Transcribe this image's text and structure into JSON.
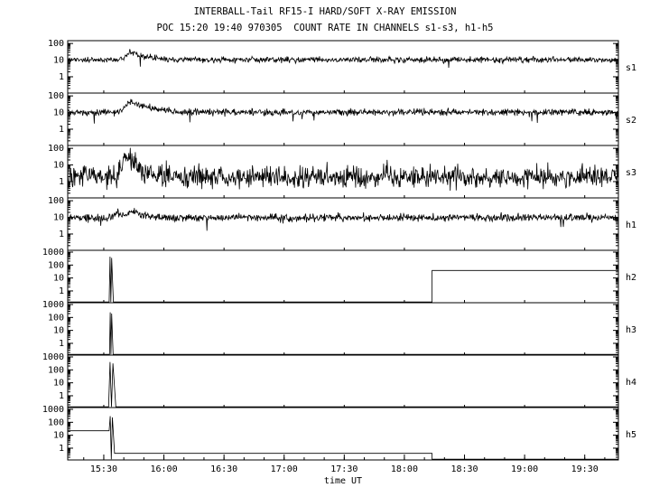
{
  "header": {
    "title": "INTERBALL-Tail RF15-I HARD/SOFT X-RAY EMISSION",
    "subtitle": "POC 15:20 19:40 970305  COUNT RATE IN CHANNELS s1-s3, h1-h5"
  },
  "colors": {
    "foreground": "#000000",
    "background": "#ffffff"
  },
  "chart_data": {
    "type": "line",
    "title": "INTERBALL-Tail RF15-I HARD/SOFT X-RAY EMISSION",
    "subtitle": "POC 15:20 19:40 970305  COUNT RATE IN CHANNELS s1-s3, h1-h5",
    "xlabel": "time UT",
    "yscale": "log",
    "grid": false,
    "x_range_hours": [
      15.2,
      19.78
    ],
    "x_ticks": [
      "15:30",
      "16:00",
      "16:30",
      "17:00",
      "17:30",
      "18:00",
      "18:30",
      "19:00",
      "19:30"
    ],
    "x_tick_hours": [
      15.5,
      16.0,
      16.5,
      17.0,
      17.5,
      18.0,
      18.5,
      19.0,
      19.5
    ],
    "panels": [
      {
        "label": "s1",
        "type": "line",
        "yticks": [
          1,
          10,
          100
        ],
        "ylim": [
          0.105,
          148
        ],
        "signal": {
          "kind": "noisy",
          "baseline": 10.5,
          "noise_dex": 0.085,
          "dropout_prob": 0.004,
          "dropout_dex": 0.6,
          "bumps": [
            {
              "t_rise_start": 15.62,
              "t_peak": 15.72,
              "peak": 24,
              "decay_h": 0.09
            }
          ]
        }
      },
      {
        "label": "s2",
        "type": "line",
        "yticks": [
          1,
          10,
          100
        ],
        "ylim": [
          0.105,
          148
        ],
        "signal": {
          "kind": "noisy",
          "baseline": 10.5,
          "noise_dex": 0.1,
          "dropout_prob": 0.01,
          "dropout_dex": 0.9,
          "bumps": [
            {
              "t_rise_start": 15.62,
              "t_peak": 15.73,
              "peak": 38,
              "decay_h": 0.11
            }
          ]
        }
      },
      {
        "label": "s3",
        "type": "line",
        "yticks": [
          1,
          10,
          100
        ],
        "ylim": [
          0.105,
          148
        ],
        "signal": {
          "kind": "noisy",
          "baseline": 1.9,
          "noise_dex": 0.32,
          "dropout_prob": 0.006,
          "dropout_dex": 0.5,
          "bumps": [
            {
              "t_rise_start": 15.6,
              "t_peak": 15.68,
              "peak": 30,
              "decay_h": 0.055
            }
          ]
        }
      },
      {
        "label": "h1",
        "type": "line",
        "yticks": [
          1,
          10,
          100
        ],
        "ylim": [
          0.105,
          148
        ],
        "signal": {
          "kind": "noisy",
          "baseline": 9.5,
          "noise_dex": 0.11,
          "dropout_prob": 0.006,
          "dropout_dex": 0.7,
          "bumps": [
            {
              "t_rise_start": 15.55,
              "t_peak": 15.61,
              "peak": 11,
              "decay_h": 0.045
            },
            {
              "t_rise_start": 15.66,
              "t_peak": 15.73,
              "peak": 16,
              "decay_h": 0.07
            }
          ]
        }
      },
      {
        "label": "h2",
        "type": "line",
        "yticks": [
          1,
          10,
          100,
          1000
        ],
        "ylim": [
          0.123,
          1380
        ],
        "signal": {
          "kind": "piecewise",
          "base": 0.14,
          "segments": [
            {
              "type": "flat",
              "t0": 15.2,
              "t1": 15.545,
              "level": 0.14
            },
            {
              "type": "spike",
              "t0": 15.545,
              "t1": 15.58,
              "peak": 450
            },
            {
              "type": "flat",
              "t0": 15.58,
              "t1": 18.23,
              "level": 0.14
            },
            {
              "type": "flat",
              "t0": 18.23,
              "t1": 19.78,
              "level": 38
            }
          ]
        }
      },
      {
        "label": "h3",
        "type": "line",
        "yticks": [
          1,
          10,
          100,
          1000
        ],
        "ylim": [
          0.123,
          1380
        ],
        "signal": {
          "kind": "piecewise",
          "base": 0.14,
          "segments": [
            {
              "type": "flat",
              "t0": 15.2,
              "t1": 15.548,
              "level": 0.14
            },
            {
              "type": "spike",
              "t0": 15.548,
              "t1": 15.578,
              "peak": 250
            },
            {
              "type": "flat",
              "t0": 15.578,
              "t1": 19.78,
              "level": 0.14
            }
          ]
        }
      },
      {
        "label": "h4",
        "type": "line",
        "yticks": [
          1,
          10,
          100,
          1000
        ],
        "ylim": [
          0.123,
          1380
        ],
        "signal": {
          "kind": "piecewise",
          "base": 0.14,
          "segments": [
            {
              "type": "flat",
              "t0": 15.2,
              "t1": 15.54,
              "level": 0.14
            },
            {
              "type": "spike",
              "t0": 15.54,
              "t1": 15.6,
              "peak": 400
            },
            {
              "type": "flat",
              "t0": 15.6,
              "t1": 19.78,
              "level": 0.14
            }
          ]
        }
      },
      {
        "label": "h5",
        "type": "line",
        "yticks": [
          1,
          10,
          100,
          1000
        ],
        "ylim": [
          0.123,
          1380
        ],
        "signal": {
          "kind": "piecewise",
          "base": 0.14,
          "segments": [
            {
              "type": "flat",
              "t0": 15.2,
              "t1": 15.545,
              "level": 22
            },
            {
              "type": "spike",
              "t0": 15.545,
              "t1": 15.59,
              "peak": 300
            },
            {
              "type": "flat",
              "t0": 15.59,
              "t1": 18.23,
              "level": 0.4
            },
            {
              "type": "flat",
              "t0": 18.23,
              "t1": 19.78,
              "level": 0.14
            }
          ]
        }
      }
    ]
  }
}
